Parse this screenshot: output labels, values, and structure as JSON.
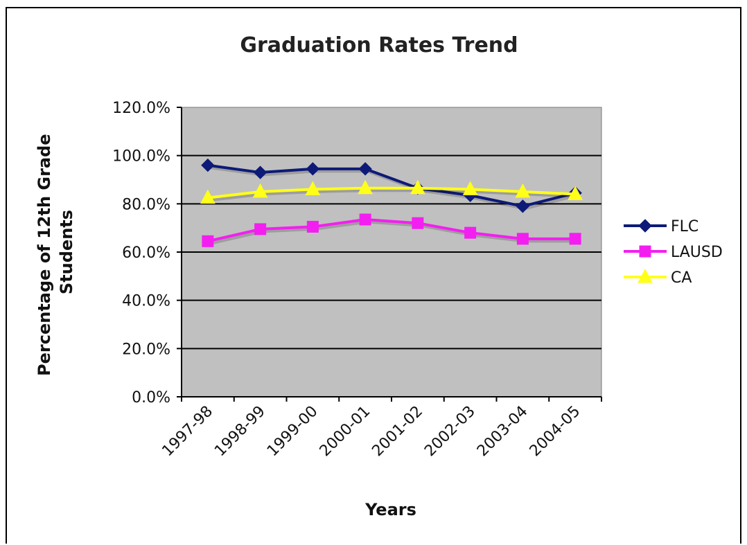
{
  "chart_data": {
    "type": "line",
    "title": "Graduation Rates Trend",
    "xlabel": "Years",
    "ylabel_lines": [
      "Percentage of 12th Grade",
      "Students"
    ],
    "categories": [
      "1997-98",
      "1998-99",
      "1999-00",
      "2000-01",
      "2001-02",
      "2002-03",
      "2003-04",
      "2004-05"
    ],
    "y_ticks": [
      "0.0%",
      "20.0%",
      "40.0%",
      "60.0%",
      "80.0%",
      "100.0%",
      "120.0%"
    ],
    "ylim": [
      0,
      120
    ],
    "grid": true,
    "legend_position": "right",
    "series": [
      {
        "name": "FLC",
        "color": "#0d1a78",
        "marker": "diamond",
        "values": [
          96.0,
          93.0,
          94.5,
          94.5,
          86.5,
          83.5,
          79.0,
          84.5
        ]
      },
      {
        "name": "LAUSD",
        "color": "#f31ff0",
        "marker": "square",
        "values": [
          64.5,
          69.5,
          70.5,
          73.5,
          72.0,
          68.0,
          65.5,
          65.5
        ]
      },
      {
        "name": "CA",
        "color": "#ffff1a",
        "marker": "triangle",
        "values": [
          82.5,
          85.0,
          86.0,
          86.5,
          86.5,
          86.0,
          85.0,
          84.0
        ]
      }
    ],
    "plot_background": "#c0c0c0"
  }
}
